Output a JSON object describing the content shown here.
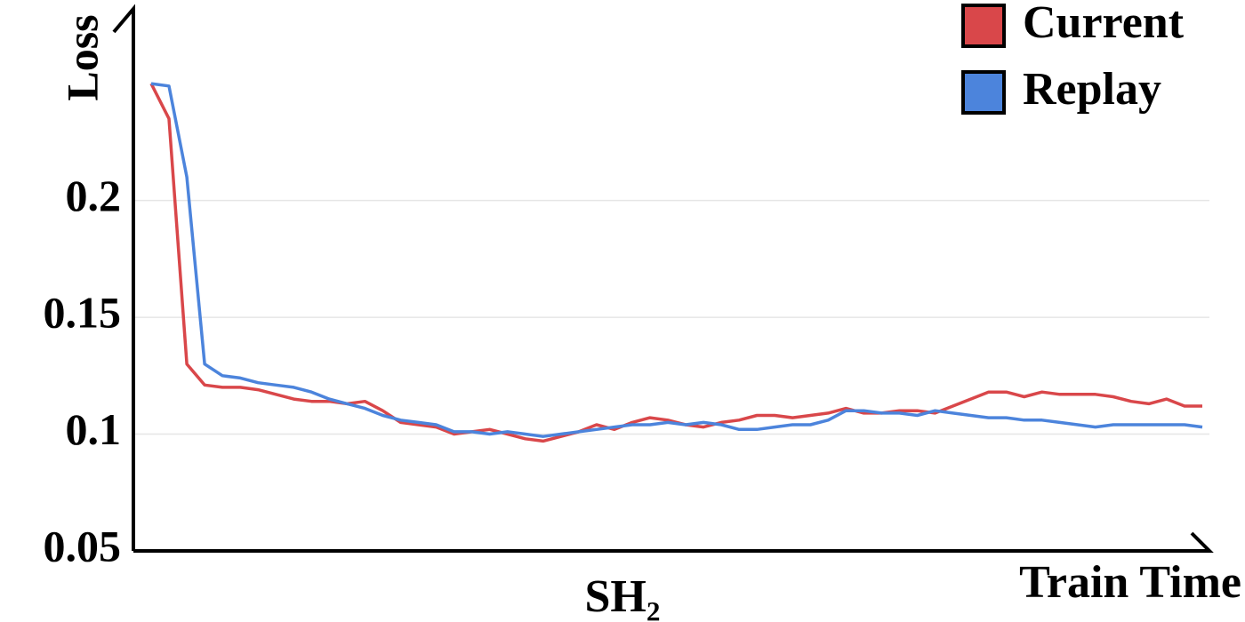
{
  "chart_data": {
    "type": "line",
    "title": "SH₂",
    "x_label": "Train Time",
    "y_label": "Loss",
    "ylim": [
      0.05,
      0.282
    ],
    "yticks": [
      0.05,
      0.1,
      0.15,
      0.2
    ],
    "grid": true,
    "legend": "upper right",
    "series": [
      {
        "name": "Current",
        "color": "#d9474a",
        "values": [
          0.25,
          0.235,
          0.13,
          0.121,
          0.12,
          0.12,
          0.119,
          0.117,
          0.115,
          0.114,
          0.114,
          0.113,
          0.114,
          0.11,
          0.105,
          0.104,
          0.103,
          0.1,
          0.101,
          0.102,
          0.1,
          0.098,
          0.097,
          0.099,
          0.101,
          0.104,
          0.102,
          0.105,
          0.107,
          0.106,
          0.104,
          0.103,
          0.105,
          0.106,
          0.108,
          0.108,
          0.107,
          0.108,
          0.109,
          0.111,
          0.109,
          0.109,
          0.11,
          0.11,
          0.109,
          0.112,
          0.115,
          0.118,
          0.118,
          0.116,
          0.118,
          0.117,
          0.117,
          0.117,
          0.116,
          0.114,
          0.113,
          0.115,
          0.112,
          0.112
        ]
      },
      {
        "name": "Replay",
        "color": "#4c84dc",
        "values": [
          0.25,
          0.249,
          0.21,
          0.13,
          0.125,
          0.124,
          0.122,
          0.121,
          0.12,
          0.118,
          0.115,
          0.113,
          0.111,
          0.108,
          0.106,
          0.105,
          0.104,
          0.101,
          0.101,
          0.1,
          0.101,
          0.1,
          0.099,
          0.1,
          0.101,
          0.102,
          0.103,
          0.104,
          0.104,
          0.105,
          0.104,
          0.105,
          0.104,
          0.102,
          0.102,
          0.103,
          0.104,
          0.104,
          0.106,
          0.11,
          0.11,
          0.109,
          0.109,
          0.108,
          0.11,
          0.109,
          0.108,
          0.107,
          0.107,
          0.106,
          0.106,
          0.105,
          0.104,
          0.103,
          0.104,
          0.104,
          0.104,
          0.104,
          0.104,
          0.103
        ]
      }
    ]
  }
}
